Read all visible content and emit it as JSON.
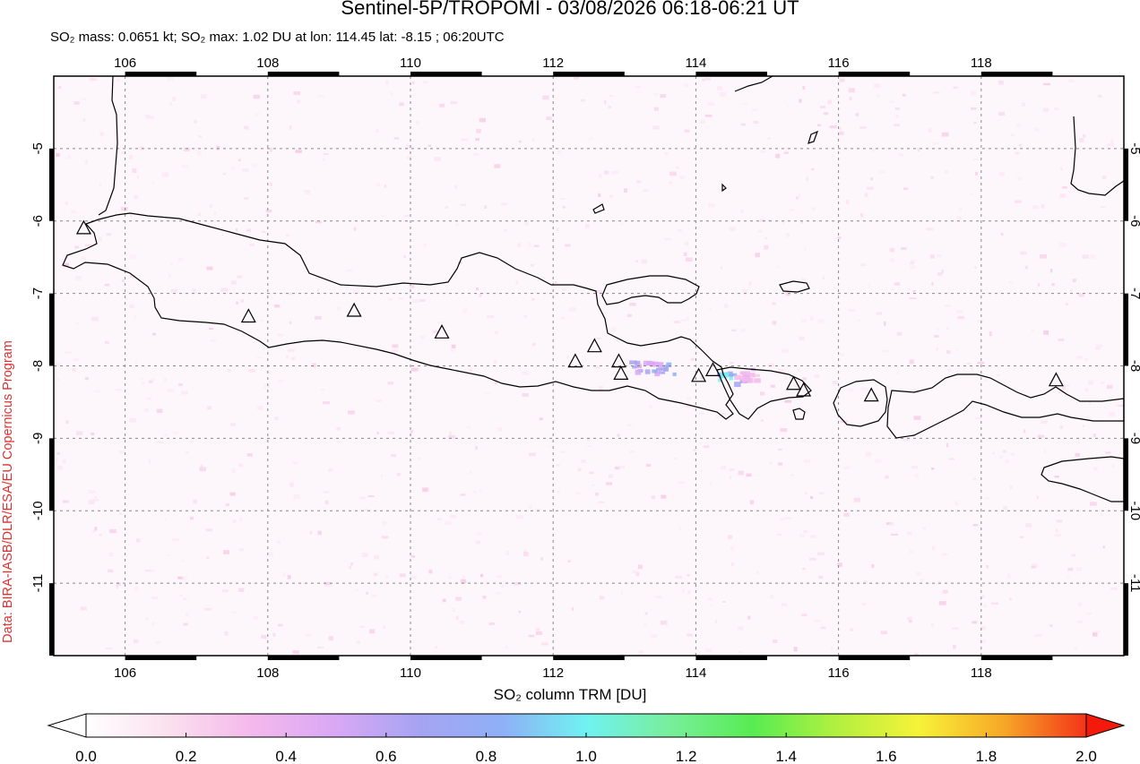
{
  "header": {
    "title": "Sentinel-5P/TROPOMI - 03/08/2026 06:18-06:21 UT",
    "subtitle": "SO₂ mass: 0.0651 kt; SO₂ max: 1.02 DU at lon: 114.45 lat: -8.15 ; 06:20UTC"
  },
  "credit": "Data: BIRA-IASB/DLR/ESA/EU Copernicus Program",
  "map": {
    "lon_range": [
      105.0,
      120.0
    ],
    "lat_range": [
      -12.0,
      -4.0
    ],
    "lon_ticks": [
      "106",
      "108",
      "110",
      "112",
      "114",
      "116",
      "118"
    ],
    "lat_ticks": [
      "-5",
      "-6",
      "-7",
      "-8",
      "-9",
      "-10",
      "-11"
    ],
    "gridlines": "dashed",
    "volcanoes": [
      {
        "lon": 105.42,
        "lat": -6.1
      },
      {
        "lon": 107.73,
        "lat": -7.32
      },
      {
        "lon": 109.21,
        "lat": -7.24
      },
      {
        "lon": 110.44,
        "lat": -7.54
      },
      {
        "lon": 112.31,
        "lat": -7.94
      },
      {
        "lon": 112.58,
        "lat": -7.73
      },
      {
        "lon": 112.92,
        "lat": -7.94
      },
      {
        "lon": 112.95,
        "lat": -8.11
      },
      {
        "lon": 114.04,
        "lat": -8.14
      },
      {
        "lon": 114.24,
        "lat": -8.06
      },
      {
        "lon": 115.37,
        "lat": -8.25
      },
      {
        "lon": 115.51,
        "lat": -8.34
      },
      {
        "lon": 116.46,
        "lat": -8.41
      },
      {
        "lon": 119.05,
        "lat": -8.2
      }
    ],
    "so2_signal": [
      {
        "lon": 113.2,
        "lat": -7.98,
        "du": 0.7
      },
      {
        "lon": 113.5,
        "lat": -8.02,
        "du": 0.8
      },
      {
        "lon": 114.45,
        "lat": -8.15,
        "du": 1.02
      },
      {
        "lon": 114.7,
        "lat": -8.1,
        "du": 0.5
      }
    ]
  },
  "colorbar": {
    "label": "SO₂ column TRM [DU]",
    "ticks": [
      "0.0",
      "0.2",
      "0.4",
      "0.6",
      "0.8",
      "1.0",
      "1.2",
      "1.4",
      "1.6",
      "1.8",
      "2.0"
    ],
    "range": [
      0.0,
      2.0
    ],
    "colors": [
      "#ffffff",
      "#fbe0ee",
      "#f4b8ec",
      "#d9a8f5",
      "#a6a4f2",
      "#8eb0f6",
      "#70f2f2",
      "#78ee9c",
      "#58ec52",
      "#b2f040",
      "#f7f238",
      "#f7a828",
      "#f33418"
    ],
    "below_color": "#ffffff",
    "above_color": "#f31a0c"
  }
}
